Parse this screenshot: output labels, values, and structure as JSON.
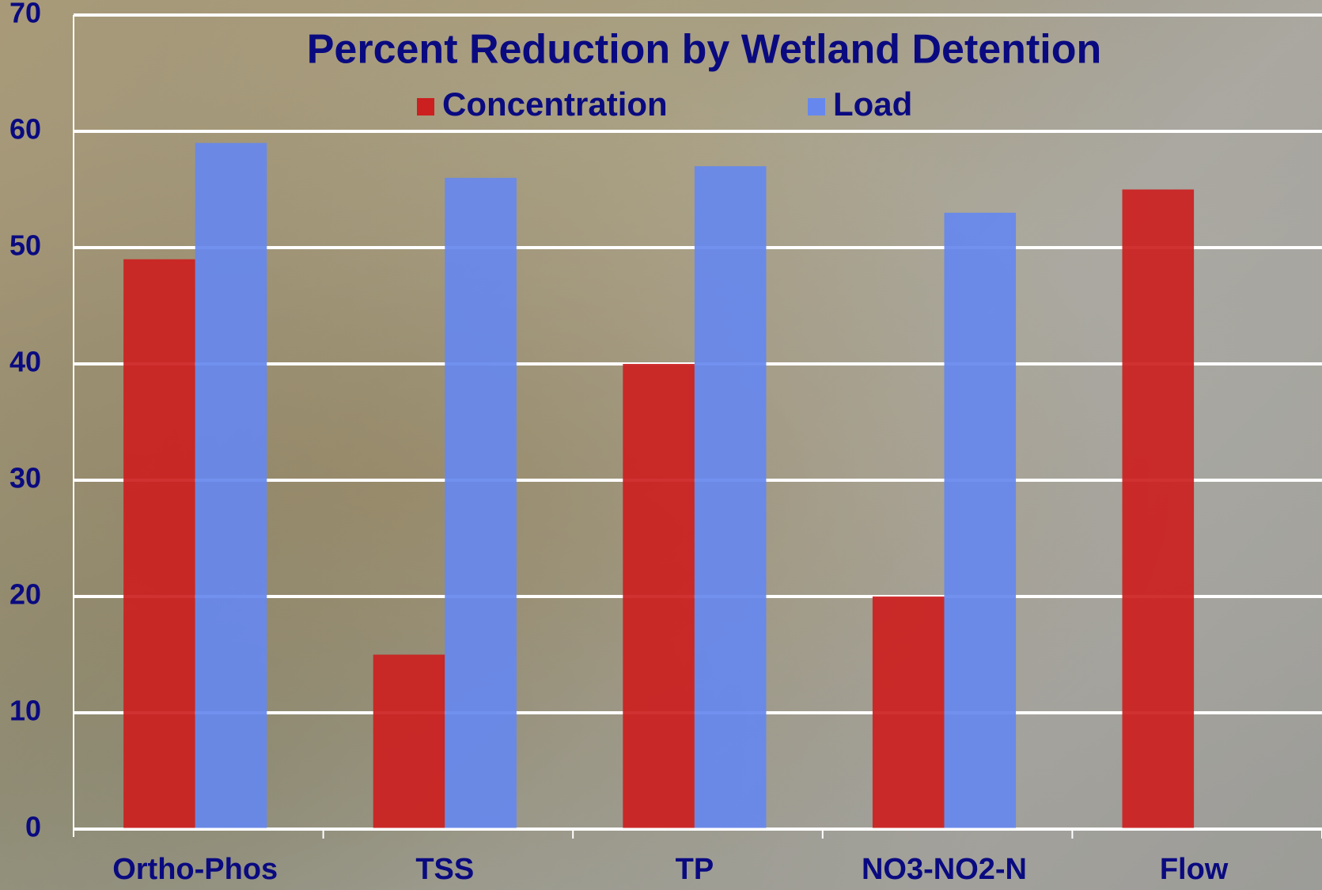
{
  "chart_data": {
    "type": "bar",
    "title": "Percent Reduction by Wetland Detention",
    "categories": [
      "Ortho-Phos",
      "TSS",
      "TP",
      "NO3-NO2-N",
      "Flow"
    ],
    "series": [
      {
        "name": "Concentration",
        "color": "#cc1f1f",
        "values": [
          49,
          15,
          40,
          20,
          55
        ]
      },
      {
        "name": "Load",
        "color": "#6688ee",
        "values": [
          59,
          56,
          57,
          53,
          null
        ]
      }
    ],
    "ylim": [
      0,
      70
    ],
    "yticks": [
      0,
      10,
      20,
      30,
      40,
      50,
      60,
      70
    ],
    "grid": true
  }
}
